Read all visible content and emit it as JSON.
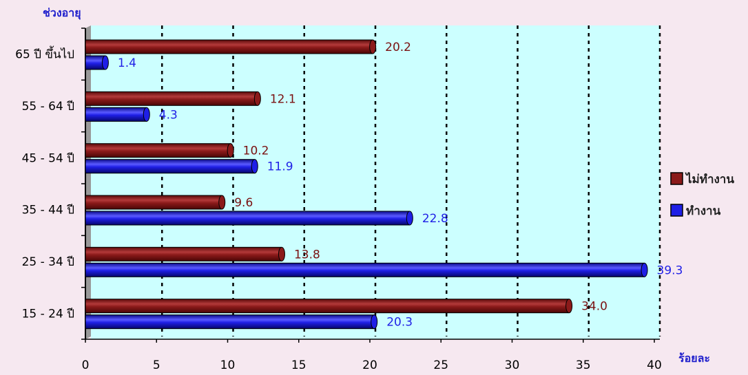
{
  "chart_data": {
    "type": "bar",
    "orientation": "horizontal",
    "ylabel": "ช่วงอายุ",
    "xlabel": "ร้อยละ",
    "categories": [
      "65 ปี ขึ้นไป",
      "55 - 64  ปี",
      "45 - 54  ปี",
      "35 - 44  ปี",
      "25 - 34  ปี",
      "15 - 24  ปี"
    ],
    "series": [
      {
        "name": "ไม่ทำงาน",
        "color": "#8b1a1a",
        "label_color": "#7a1010",
        "values": [
          20.2,
          12.1,
          10.2,
          9.6,
          13.8,
          34.0
        ],
        "labels": [
          "20.2",
          "12.1",
          "10.2",
          "9.6",
          "13.8",
          "34.0"
        ]
      },
      {
        "name": "ทำงาน",
        "color": "#1f1fe6",
        "label_color": "#1f1fe6",
        "values": [
          1.4,
          4.3,
          11.9,
          22.8,
          39.3,
          20.3
        ],
        "labels": [
          "1.4",
          "4.3",
          "11.9",
          "22.8",
          "39.3",
          "20.3"
        ]
      }
    ],
    "xlim": [
      0,
      40
    ],
    "xticks": [
      "0",
      "5",
      "10",
      "15",
      "20",
      "25",
      "30",
      "35",
      "40"
    ],
    "grid": "vertical-dotted",
    "legend": "right",
    "plot_background": "#ccffff"
  }
}
